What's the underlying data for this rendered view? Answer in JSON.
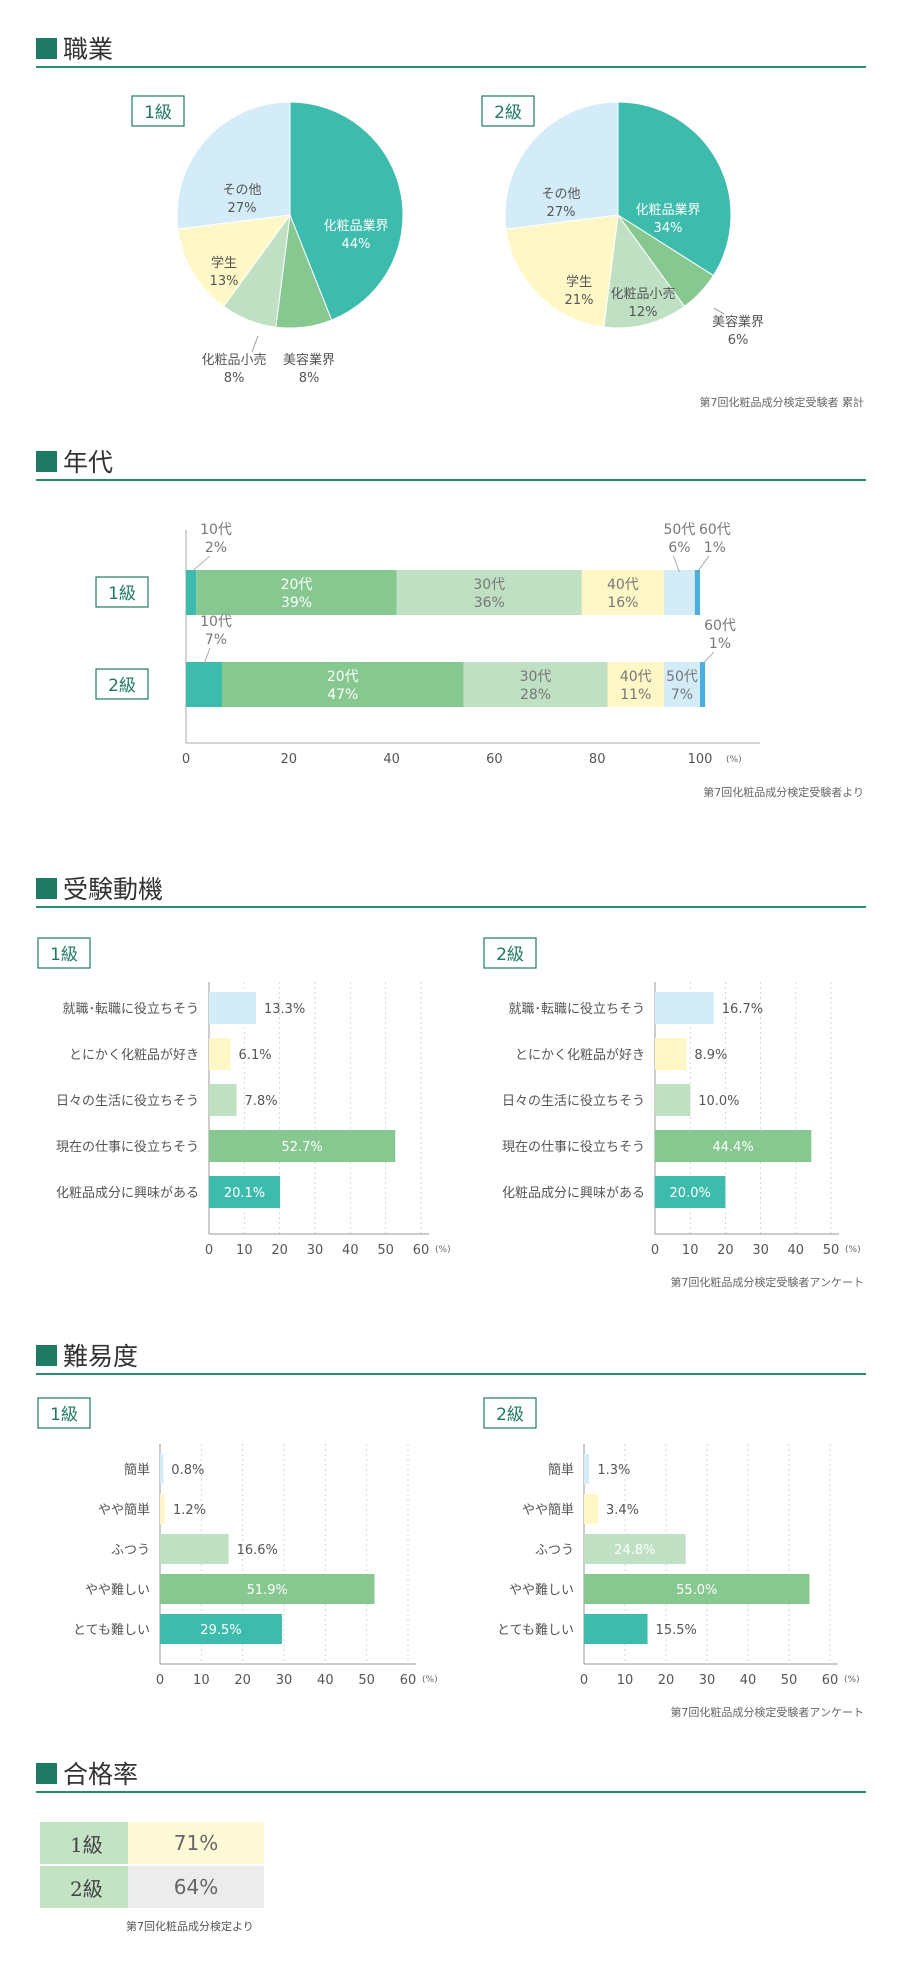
{
  "colors": {
    "teal": "#3dbcad",
    "green": "#86c88f",
    "lightgreen": "#bfe0c3",
    "yellow": "#fff7c6",
    "lightblue": "#d3ecf8",
    "blue": "#4aaee0",
    "accent": "#1f7a63"
  },
  "sections": {
    "occupation": "職業",
    "age": "年代",
    "motive": "受験動機",
    "difficulty": "難易度",
    "pass": "合格率"
  },
  "sources": {
    "occupation": "第7回化粧品成分検定受験者 累計",
    "age": "第7回化粧品成分検定受験者より",
    "motive": "第7回化粧品成分検定受験者アンケート",
    "difficulty": "第7回化粧品成分検定受験者アンケート",
    "pass": "第7回化粧品成分検定より"
  },
  "chart_data": [
    {
      "id": "occupation-1",
      "type": "pie",
      "title": "1級",
      "slices": [
        {
          "name": "化粧品業界",
          "value": 44,
          "label": "44%",
          "color": "teal"
        },
        {
          "name": "美容業界",
          "value": 8,
          "label": "8%",
          "color": "green"
        },
        {
          "name": "化粧品小売",
          "value": 8,
          "label": "8%",
          "color": "lightgreen"
        },
        {
          "name": "学生",
          "value": 13,
          "label": "13%",
          "color": "yellow"
        },
        {
          "name": "その他",
          "value": 27,
          "label": "27%",
          "color": "lightblue"
        }
      ]
    },
    {
      "id": "occupation-2",
      "type": "pie",
      "title": "2級",
      "slices": [
        {
          "name": "化粧品業界",
          "value": 34,
          "label": "34%",
          "color": "teal"
        },
        {
          "name": "美容業界",
          "value": 6,
          "label": "6%",
          "color": "green"
        },
        {
          "name": "化粧品小売",
          "value": 12,
          "label": "12%",
          "color": "lightgreen"
        },
        {
          "name": "学生",
          "value": 21,
          "label": "21%",
          "color": "yellow"
        },
        {
          "name": "その他",
          "value": 27,
          "label": "27%",
          "color": "lightblue"
        }
      ]
    },
    {
      "id": "age",
      "type": "bar",
      "orientation": "horizontal-stacked",
      "categories": [
        "1級",
        "2級"
      ],
      "series": [
        {
          "name": "10代",
          "values": [
            2,
            7
          ],
          "color": "teal"
        },
        {
          "name": "20代",
          "values": [
            39,
            47
          ],
          "color": "green"
        },
        {
          "name": "30代",
          "values": [
            36,
            28
          ],
          "color": "lightgreen"
        },
        {
          "name": "40代",
          "values": [
            16,
            11
          ],
          "color": "yellow"
        },
        {
          "name": "50代",
          "values": [
            6,
            7
          ],
          "color": "lightblue"
        },
        {
          "name": "60代",
          "values": [
            1,
            1
          ],
          "color": "blue"
        }
      ],
      "xlim": [
        0,
        100
      ],
      "xticks": [
        "0",
        "20",
        "40",
        "60",
        "80",
        "100"
      ],
      "unit": "(%)"
    },
    {
      "id": "motive-1",
      "type": "bar",
      "orientation": "horizontal",
      "title": "1級",
      "categories": [
        "就職･転職に役立ちそう",
        "とにかく化粧品が好き",
        "日々の生活に役立ちそう",
        "現在の仕事に役立ちそう",
        "化粧品成分に興味がある"
      ],
      "values": [
        13.3,
        6.1,
        7.8,
        52.7,
        20.1
      ],
      "labels": [
        "13.3%",
        "6.1%",
        "7.8%",
        "52.7%",
        "20.1%"
      ],
      "colors": [
        "lightblue",
        "yellow",
        "lightgreen",
        "green",
        "teal"
      ],
      "xlim": [
        0,
        60
      ],
      "xticks": [
        "0",
        "10",
        "20",
        "30",
        "40",
        "50",
        "60"
      ],
      "unit": "(%)"
    },
    {
      "id": "motive-2",
      "type": "bar",
      "orientation": "horizontal",
      "title": "2級",
      "categories": [
        "就職･転職に役立ちそう",
        "とにかく化粧品が好き",
        "日々の生活に役立ちそう",
        "現在の仕事に役立ちそう",
        "化粧品成分に興味がある"
      ],
      "values": [
        16.7,
        8.9,
        10.0,
        44.4,
        20.0
      ],
      "labels": [
        "16.7%",
        "8.9%",
        "10.0%",
        "44.4%",
        "20.0%"
      ],
      "colors": [
        "lightblue",
        "yellow",
        "lightgreen",
        "green",
        "teal"
      ],
      "xlim": [
        0,
        50
      ],
      "xticks": [
        "0",
        "10",
        "20",
        "30",
        "40",
        "50"
      ],
      "unit": "(%)"
    },
    {
      "id": "difficulty-1",
      "type": "bar",
      "orientation": "horizontal",
      "title": "1級",
      "categories": [
        "簡単",
        "やや簡単",
        "ふつう",
        "やや難しい",
        "とても難しい"
      ],
      "values": [
        0.8,
        1.2,
        16.6,
        51.9,
        29.5
      ],
      "labels": [
        "0.8%",
        "1.2%",
        "16.6%",
        "51.9%",
        "29.5%"
      ],
      "colors": [
        "lightblue",
        "yellow",
        "lightgreen",
        "green",
        "teal"
      ],
      "xlim": [
        0,
        60
      ],
      "xticks": [
        "0",
        "10",
        "20",
        "30",
        "40",
        "50",
        "60"
      ],
      "unit": "(%)"
    },
    {
      "id": "difficulty-2",
      "type": "bar",
      "orientation": "horizontal",
      "title": "2級",
      "categories": [
        "簡単",
        "やや簡単",
        "ふつう",
        "やや難しい",
        "とても難しい"
      ],
      "values": [
        1.3,
        3.4,
        24.8,
        55.0,
        15.5
      ],
      "labels": [
        "1.3%",
        "3.4%",
        "24.8%",
        "55.0%",
        "15.5%"
      ],
      "colors": [
        "lightblue",
        "yellow",
        "lightgreen",
        "green",
        "teal"
      ],
      "xlim": [
        0,
        60
      ],
      "xticks": [
        "0",
        "10",
        "20",
        "30",
        "40",
        "50",
        "60"
      ],
      "unit": "(%)"
    },
    {
      "id": "pass-rate",
      "type": "table",
      "rows": [
        {
          "level": "1級",
          "rate": "71%",
          "color": "#fdf9d6"
        },
        {
          "level": "2級",
          "rate": "64%",
          "color": "#ececec"
        }
      ]
    }
  ]
}
